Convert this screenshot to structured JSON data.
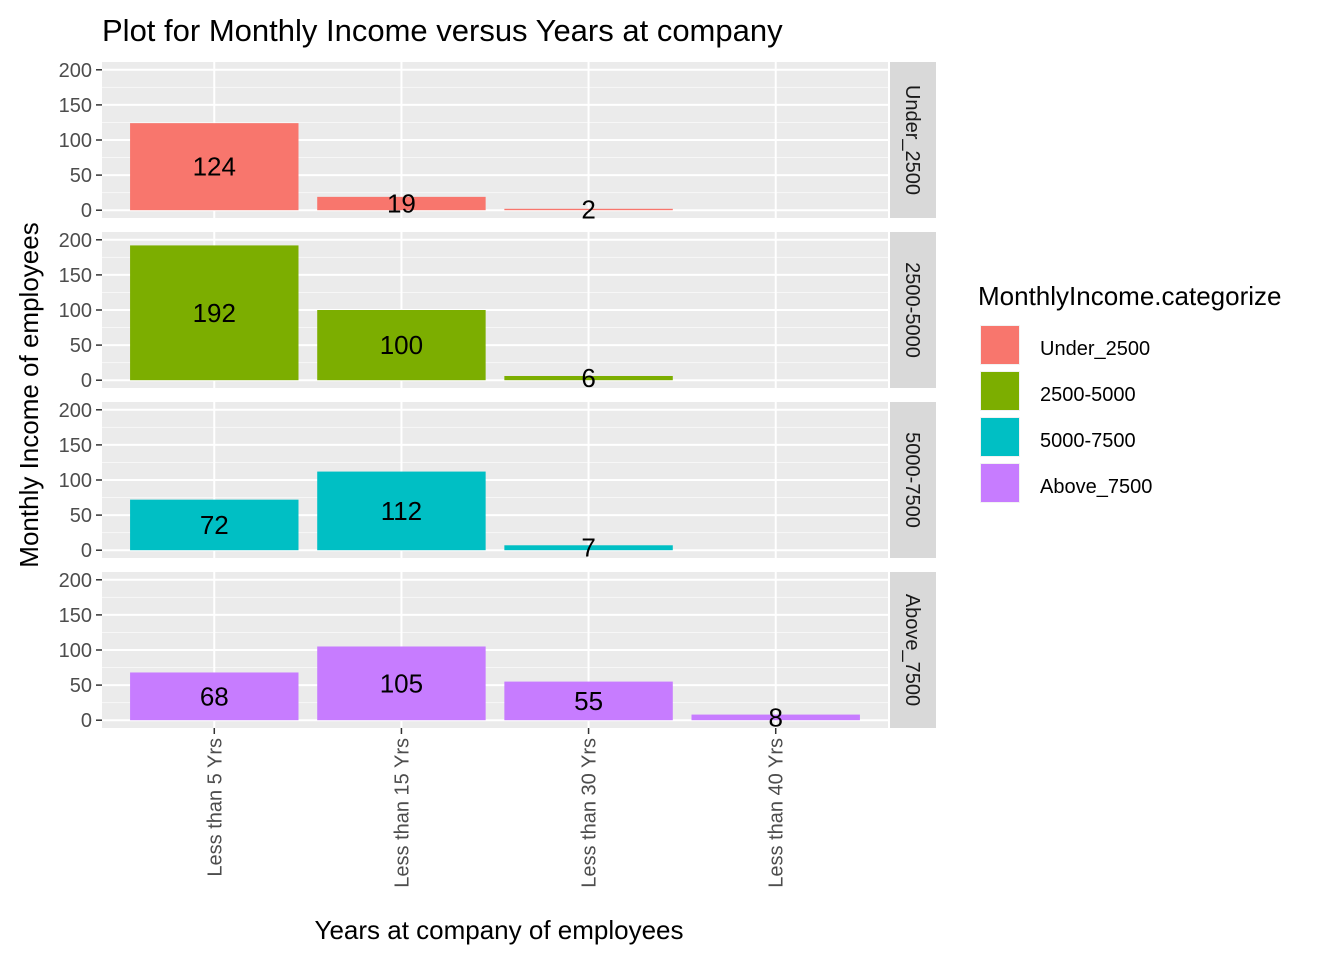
{
  "chart_data": {
    "type": "bar",
    "title": "Plot for Monthly Income versus Years at company",
    "xlabel": "Years at company of employees",
    "ylabel": "Monthly Income of employees",
    "categories": [
      "Less than 5 Yrs",
      "Less than 15 Yrs",
      "Less than 30 Yrs",
      "Less than 40 Yrs"
    ],
    "ylim": [
      0,
      200
    ],
    "yticks": [
      0,
      50,
      100,
      150,
      200
    ],
    "grid": true,
    "facet_by": "MonthlyIncome.categorize",
    "legend": {
      "title": "MonthlyIncome.categorize",
      "position": "right",
      "entries": [
        "Under_2500",
        "2500-5000",
        "5000-7500",
        "Above_7500"
      ]
    },
    "series": [
      {
        "name": "Under_2500",
        "color": "#F8766D",
        "values": [
          124,
          19,
          2,
          null
        ]
      },
      {
        "name": "2500-5000",
        "color": "#7CAE00",
        "values": [
          192,
          100,
          6,
          null
        ]
      },
      {
        "name": "5000-7500",
        "color": "#00BFC4",
        "values": [
          72,
          112,
          7,
          null
        ]
      },
      {
        "name": "Above_7500",
        "color": "#C77CFF",
        "values": [
          68,
          105,
          55,
          8
        ]
      }
    ]
  }
}
